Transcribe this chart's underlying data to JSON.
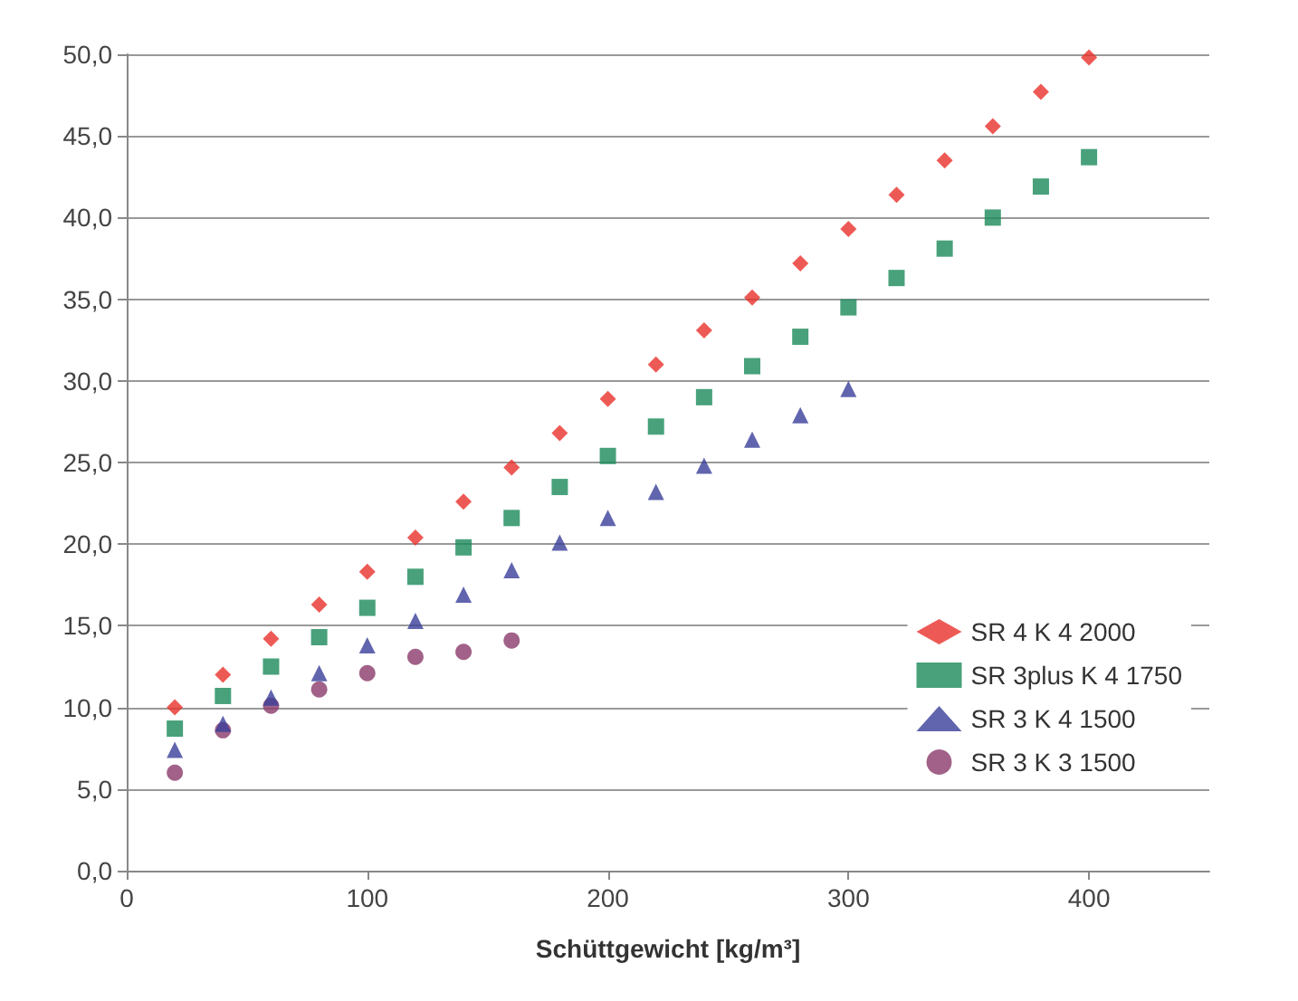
{
  "chart_data": {
    "type": "scatter",
    "xlabel": "Schüttgewicht [kg/m³]",
    "xlim": [
      0,
      450
    ],
    "xticks": [
      0,
      100,
      200,
      300,
      400
    ],
    "ylim": [
      0,
      50
    ],
    "yticks": [
      {
        "value": 0,
        "label": "0,0"
      },
      {
        "value": 5,
        "label": "5,0"
      },
      {
        "value": 10,
        "label": "10,0"
      },
      {
        "value": 15,
        "label": "15,0"
      },
      {
        "value": 20,
        "label": "20,0"
      },
      {
        "value": 25,
        "label": "25,0"
      },
      {
        "value": 30,
        "label": "30,0"
      },
      {
        "value": 35,
        "label": "35,0"
      },
      {
        "value": 40,
        "label": "40,0"
      },
      {
        "value": 45,
        "label": "45,0"
      },
      {
        "value": 50,
        "label": "50,0"
      }
    ],
    "grid": "y",
    "legend": "bottom right",
    "series": [
      {
        "name": "SR 4 K 4 2000",
        "color": "#e8312a",
        "marker": "diamond",
        "x": [
          20,
          40,
          60,
          80,
          100,
          120,
          140,
          160,
          180,
          200,
          220,
          240,
          260,
          280,
          300,
          320,
          340,
          360,
          380,
          400
        ],
        "values": [
          10.0,
          12.0,
          14.2,
          16.3,
          18.3,
          20.4,
          22.6,
          24.7,
          26.8,
          28.9,
          31.0,
          33.1,
          35.1,
          37.2,
          39.3,
          41.4,
          43.5,
          45.6,
          47.7,
          49.8
        ]
      },
      {
        "name": "SR 3plus K 4 1750",
        "color": "#1a8a5a",
        "marker": "square",
        "x": [
          20,
          40,
          60,
          80,
          100,
          120,
          140,
          160,
          180,
          200,
          220,
          240,
          260,
          280,
          300,
          320,
          340,
          360,
          380,
          400
        ],
        "values": [
          8.7,
          10.7,
          12.5,
          14.3,
          16.1,
          18.0,
          19.8,
          21.6,
          23.5,
          25.4,
          27.2,
          29.0,
          30.9,
          32.7,
          34.5,
          36.3,
          38.1,
          40.0,
          41.9,
          43.7
        ]
      },
      {
        "name": "SR 3 K 4 1500",
        "color": "#3a3f9a",
        "marker": "triangle",
        "x": [
          20,
          40,
          60,
          80,
          100,
          120,
          140,
          160,
          180,
          200,
          220,
          240,
          260,
          280,
          300
        ],
        "values": [
          7.4,
          9.0,
          10.6,
          12.1,
          13.8,
          15.3,
          16.9,
          18.4,
          20.1,
          21.6,
          23.2,
          24.8,
          26.4,
          27.9,
          29.5
        ]
      },
      {
        "name": "SR 3 K 3 1500",
        "color": "#8a3a6a",
        "marker": "circle",
        "x": [
          20,
          40,
          60,
          80,
          100,
          120,
          140,
          160
        ],
        "values": [
          6.0,
          8.6,
          10.1,
          11.1,
          12.1,
          13.1,
          13.4,
          14.1
        ]
      }
    ]
  }
}
